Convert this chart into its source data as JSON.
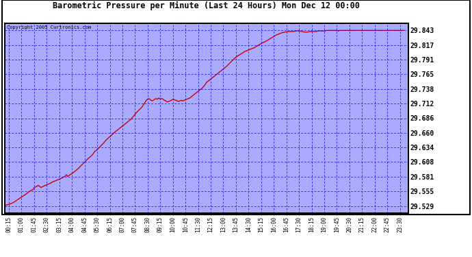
{
  "title": "Barometric Pressure per Minute (Last 24 Hours) Mon Dec 12 00:00",
  "copyright": "Copyright 2005 Curtronics.com",
  "plot_bg_color": "#aaaaff",
  "line_color": "#cc0000",
  "y_ticks": [
    29.529,
    29.555,
    29.581,
    29.608,
    29.634,
    29.66,
    29.686,
    29.712,
    29.738,
    29.765,
    29.791,
    29.817,
    29.843
  ],
  "ylim": [
    29.516,
    29.856
  ],
  "x_labels": [
    "00:15",
    "01:00",
    "01:45",
    "02:30",
    "03:15",
    "04:00",
    "04:45",
    "05:30",
    "06:15",
    "07:00",
    "07:45",
    "08:30",
    "09:15",
    "10:00",
    "10:45",
    "11:30",
    "12:15",
    "13:00",
    "13:45",
    "14:30",
    "15:15",
    "16:00",
    "16:45",
    "17:30",
    "18:15",
    "19:00",
    "19:45",
    "20:30",
    "21:15",
    "22:00",
    "22:45",
    "23:30"
  ],
  "x_tick_minutes": [
    15,
    60,
    105,
    150,
    195,
    240,
    285,
    330,
    375,
    420,
    465,
    510,
    555,
    600,
    645,
    690,
    735,
    780,
    825,
    870,
    915,
    960,
    1005,
    1050,
    1095,
    1140,
    1185,
    1230,
    1275,
    1320,
    1365,
    1410
  ],
  "pressure_data": [
    [
      0,
      29.53
    ],
    [
      15,
      29.532
    ],
    [
      30,
      29.535
    ],
    [
      45,
      29.54
    ],
    [
      60,
      29.545
    ],
    [
      75,
      29.55
    ],
    [
      90,
      29.556
    ],
    [
      100,
      29.558
    ],
    [
      105,
      29.562
    ],
    [
      110,
      29.563
    ],
    [
      120,
      29.566
    ],
    [
      130,
      29.562
    ],
    [
      140,
      29.565
    ],
    [
      150,
      29.567
    ],
    [
      160,
      29.569
    ],
    [
      170,
      29.572
    ],
    [
      180,
      29.574
    ],
    [
      190,
      29.576
    ],
    [
      200,
      29.578
    ],
    [
      210,
      29.581
    ],
    [
      215,
      29.582
    ],
    [
      220,
      29.585
    ],
    [
      225,
      29.582
    ],
    [
      230,
      29.584
    ],
    [
      240,
      29.587
    ],
    [
      250,
      29.591
    ],
    [
      260,
      29.595
    ],
    [
      270,
      29.6
    ],
    [
      280,
      29.605
    ],
    [
      290,
      29.61
    ],
    [
      300,
      29.615
    ],
    [
      310,
      29.619
    ],
    [
      315,
      29.622
    ],
    [
      320,
      29.626
    ],
    [
      330,
      29.63
    ],
    [
      340,
      29.635
    ],
    [
      350,
      29.64
    ],
    [
      360,
      29.646
    ],
    [
      370,
      29.651
    ],
    [
      380,
      29.655
    ],
    [
      390,
      29.66
    ],
    [
      400,
      29.664
    ],
    [
      410,
      29.668
    ],
    [
      420,
      29.672
    ],
    [
      430,
      29.676
    ],
    [
      440,
      29.68
    ],
    [
      450,
      29.684
    ],
    [
      460,
      29.69
    ],
    [
      470,
      29.696
    ],
    [
      480,
      29.701
    ],
    [
      490,
      29.706
    ],
    [
      495,
      29.71
    ],
    [
      500,
      29.714
    ],
    [
      505,
      29.718
    ],
    [
      510,
      29.72
    ],
    [
      515,
      29.721
    ],
    [
      520,
      29.719
    ],
    [
      525,
      29.717
    ],
    [
      530,
      29.718
    ],
    [
      535,
      29.72
    ],
    [
      540,
      29.721
    ],
    [
      545,
      29.72
    ],
    [
      550,
      29.722
    ],
    [
      555,
      29.72
    ],
    [
      560,
      29.721
    ],
    [
      565,
      29.72
    ],
    [
      570,
      29.718
    ],
    [
      575,
      29.717
    ],
    [
      580,
      29.715
    ],
    [
      585,
      29.716
    ],
    [
      590,
      29.717
    ],
    [
      595,
      29.718
    ],
    [
      600,
      29.72
    ],
    [
      605,
      29.719
    ],
    [
      610,
      29.718
    ],
    [
      615,
      29.717
    ],
    [
      620,
      29.716
    ],
    [
      625,
      29.717
    ],
    [
      630,
      29.718
    ],
    [
      635,
      29.717
    ],
    [
      640,
      29.718
    ],
    [
      645,
      29.719
    ],
    [
      650,
      29.72
    ],
    [
      655,
      29.721
    ],
    [
      660,
      29.722
    ],
    [
      665,
      29.724
    ],
    [
      670,
      29.726
    ],
    [
      675,
      29.728
    ],
    [
      680,
      29.73
    ],
    [
      685,
      29.732
    ],
    [
      690,
      29.734
    ],
    [
      695,
      29.736
    ],
    [
      700,
      29.738
    ],
    [
      705,
      29.74
    ],
    [
      710,
      29.743
    ],
    [
      715,
      29.746
    ],
    [
      720,
      29.75
    ],
    [
      730,
      29.754
    ],
    [
      740,
      29.758
    ],
    [
      750,
      29.762
    ],
    [
      760,
      29.766
    ],
    [
      770,
      29.77
    ],
    [
      780,
      29.774
    ],
    [
      790,
      29.778
    ],
    [
      800,
      29.783
    ],
    [
      810,
      29.788
    ],
    [
      820,
      29.793
    ],
    [
      830,
      29.797
    ],
    [
      840,
      29.8
    ],
    [
      850,
      29.803
    ],
    [
      855,
      29.805
    ],
    [
      860,
      29.806
    ],
    [
      870,
      29.808
    ],
    [
      880,
      29.81
    ],
    [
      890,
      29.812
    ],
    [
      900,
      29.815
    ],
    [
      910,
      29.818
    ],
    [
      920,
      29.821
    ],
    [
      930,
      29.823
    ],
    [
      940,
      29.826
    ],
    [
      950,
      29.829
    ],
    [
      960,
      29.832
    ],
    [
      970,
      29.835
    ],
    [
      980,
      29.837
    ],
    [
      990,
      29.839
    ],
    [
      1000,
      29.84
    ],
    [
      1010,
      29.841
    ],
    [
      1020,
      29.841
    ],
    [
      1030,
      29.841
    ],
    [
      1040,
      29.842
    ],
    [
      1050,
      29.842
    ],
    [
      1060,
      29.841
    ],
    [
      1070,
      29.84
    ],
    [
      1080,
      29.84
    ],
    [
      1090,
      29.841
    ],
    [
      1100,
      29.841
    ],
    [
      1110,
      29.841
    ],
    [
      1120,
      29.842
    ],
    [
      1130,
      29.842
    ],
    [
      1140,
      29.842
    ],
    [
      1150,
      29.843
    ],
    [
      1160,
      29.843
    ],
    [
      1170,
      29.843
    ],
    [
      1180,
      29.843
    ],
    [
      1185,
      29.843
    ],
    [
      1190,
      29.842
    ],
    [
      1195,
      29.843
    ],
    [
      1200,
      29.843
    ],
    [
      1210,
      29.843
    ],
    [
      1215,
      29.843
    ],
    [
      1220,
      29.843
    ],
    [
      1425,
      29.843
    ]
  ]
}
